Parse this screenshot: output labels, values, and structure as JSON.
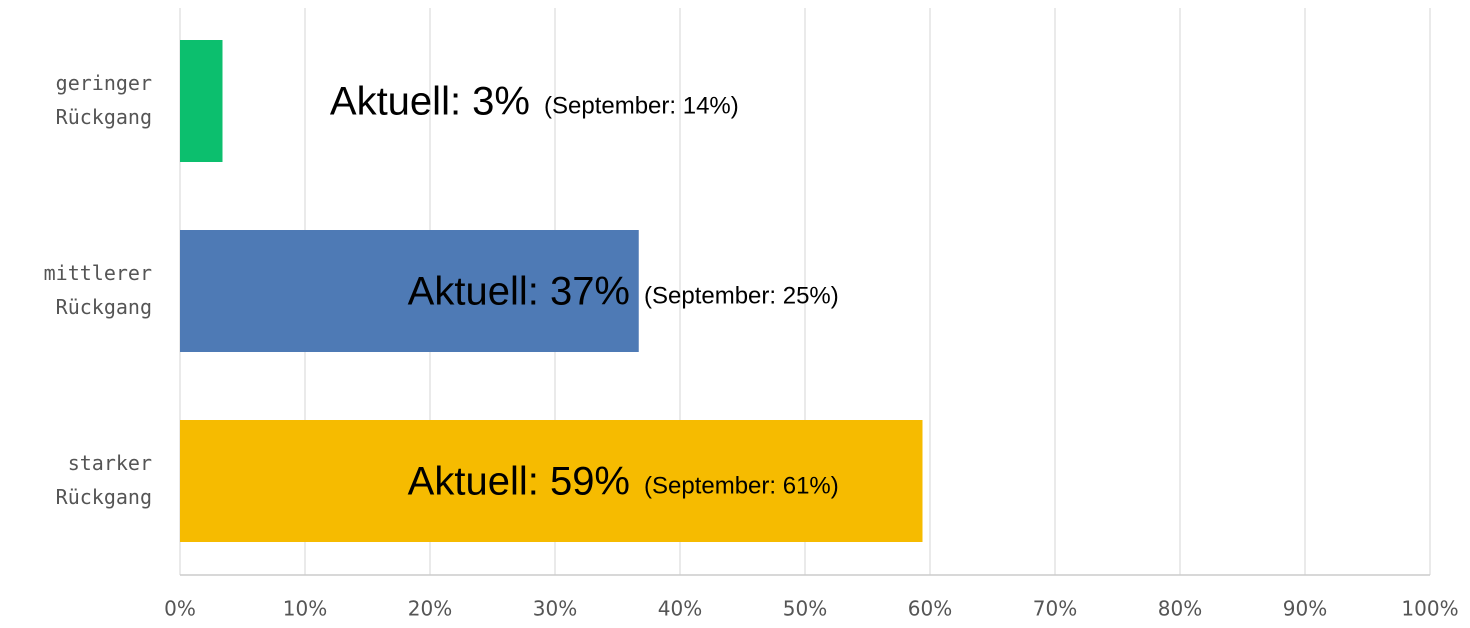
{
  "chart_data": {
    "type": "hbar",
    "categories": [
      [
        "geringer",
        "Rückgang"
      ],
      [
        "mittlerer",
        "Rückgang"
      ],
      [
        "starker",
        "Rückgang"
      ]
    ],
    "values": [
      3.4,
      36.7,
      59.4
    ],
    "value_labels": [
      "Aktuell: 3%",
      "Aktuell: 37%",
      "Aktuell: 59%"
    ],
    "annotations": [
      "(September: 14%)",
      "(September: 25%)",
      "(September: 61%)"
    ],
    "colors": [
      "#0cbf6e",
      "#4e7ab5",
      "#f6bb00"
    ],
    "xlim": [
      0,
      100
    ],
    "xticks": [
      {
        "value": 0,
        "label": "0%"
      },
      {
        "value": 10,
        "label": "10%"
      },
      {
        "value": 20,
        "label": "20%"
      },
      {
        "value": 30,
        "label": "30%"
      },
      {
        "value": 40,
        "label": "40%"
      },
      {
        "value": 50,
        "label": "50%"
      },
      {
        "value": 60,
        "label": "60%"
      },
      {
        "value": 70,
        "label": "70%"
      },
      {
        "value": 80,
        "label": "80%"
      },
      {
        "value": 90,
        "label": "90%"
      },
      {
        "value": 100,
        "label": "100%"
      }
    ],
    "grid": true
  }
}
